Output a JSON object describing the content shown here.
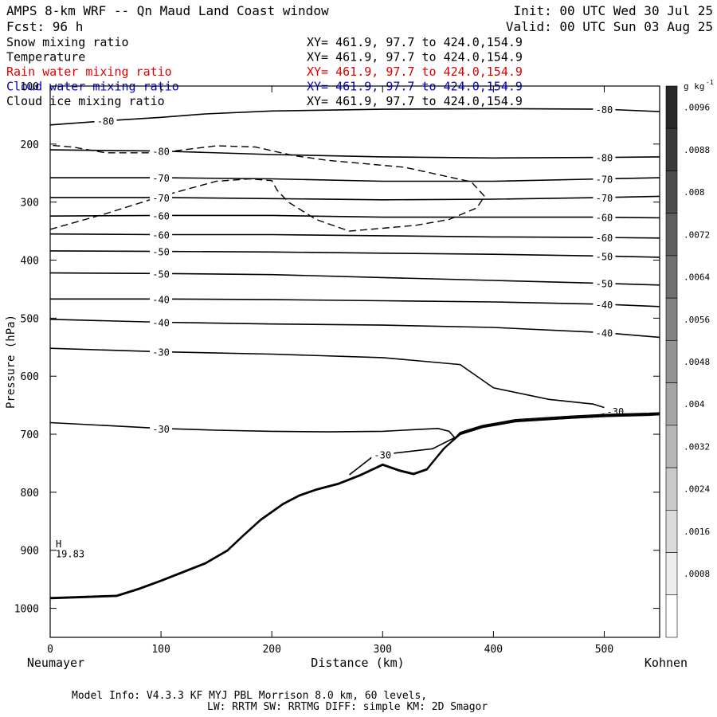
{
  "header": {
    "title": "AMPS 8-km WRF -- Qn Maud Land Coast window",
    "init": "Init: 00 UTC Wed 30 Jul 25",
    "fcst": "Fcst:   96 h",
    "valid": "Valid: 00 UTC Sun 03 Aug 25"
  },
  "fields": [
    {
      "name": "Snow mixing ratio",
      "xy": "XY= 461.9, 97.7 to 424.0,154.9",
      "color": "#000000"
    },
    {
      "name": "Temperature",
      "xy": "XY= 461.9, 97.7 to 424.0,154.9",
      "color": "#000000"
    },
    {
      "name": "Rain water mixing ratio",
      "xy": "XY= 461.9, 97.7 to 424.0,154.9",
      "color": "#e00000"
    },
    {
      "name": "Cloud water mixing ratio",
      "xy": "XY= 461.9, 97.7 to 424.0,154.9",
      "color": "#0000cc"
    },
    {
      "name": "Cloud ice mixing ratio",
      "xy": "XY= 461.9, 97.7 to 424.0,154.9",
      "color": "#000000"
    }
  ],
  "footer": {
    "line1": "Model Info: V4.3.3   KF      MYJ PBL  Morrison           8.0 km,  60 levels,",
    "line2": "LW: RRTM SW: RRTMG   DIFF: simple KM: 2D Smagor"
  },
  "chart_data": {
    "type": "contour",
    "xlabel": "Distance (km)",
    "ylabel": "Pressure (hPa)",
    "x_start_label": "Neumayer",
    "x_end_label": "Kohnen",
    "xlim": [
      0,
      550
    ],
    "ylim": [
      1050,
      100
    ],
    "x_ticks": [
      0,
      100,
      200,
      300,
      400,
      500
    ],
    "y_ticks": [
      100,
      200,
      300,
      400,
      500,
      600,
      700,
      800,
      900,
      1000
    ],
    "colorbar": {
      "unit": "g kg",
      "unit_exp": "-1",
      "ticks": [
        ".0096",
        ".0088",
        ".008",
        ".0072",
        ".0064",
        ".0056",
        ".0048",
        ".004",
        ".0032",
        ".0024",
        ".0016",
        ".0008"
      ]
    },
    "isotherms": [
      {
        "value": -80,
        "points": [
          [
            0,
            167
          ],
          [
            50,
            160
          ],
          [
            100,
            154
          ],
          [
            140,
            148
          ],
          [
            200,
            143
          ],
          [
            300,
            140
          ],
          [
            400,
            139
          ],
          [
            500,
            140
          ],
          [
            550,
            144
          ]
        ]
      },
      {
        "value": -80,
        "points": [
          [
            0,
            210
          ],
          [
            100,
            212
          ],
          [
            200,
            218
          ],
          [
            300,
            222
          ],
          [
            400,
            224
          ],
          [
            500,
            223
          ],
          [
            550,
            222
          ]
        ]
      },
      {
        "value": -70,
        "points": [
          [
            0,
            258
          ],
          [
            100,
            258
          ],
          [
            200,
            260
          ],
          [
            300,
            264
          ],
          [
            400,
            264
          ],
          [
            500,
            260
          ],
          [
            550,
            258
          ]
        ]
      },
      {
        "value": -70,
        "points": [
          [
            0,
            292
          ],
          [
            100,
            292
          ],
          [
            200,
            294
          ],
          [
            300,
            296
          ],
          [
            400,
            295
          ],
          [
            500,
            292
          ],
          [
            550,
            290
          ]
        ]
      },
      {
        "value": -60,
        "points": [
          [
            0,
            324
          ],
          [
            100,
            323
          ],
          [
            200,
            323
          ],
          [
            300,
            326
          ],
          [
            400,
            326
          ],
          [
            500,
            326
          ],
          [
            550,
            327
          ]
        ]
      },
      {
        "value": -60,
        "points": [
          [
            0,
            355
          ],
          [
            100,
            356
          ],
          [
            200,
            356
          ],
          [
            300,
            358
          ],
          [
            400,
            360
          ],
          [
            500,
            361
          ],
          [
            550,
            362
          ]
        ]
      },
      {
        "value": -50,
        "points": [
          [
            0,
            384
          ],
          [
            100,
            385
          ],
          [
            200,
            386
          ],
          [
            300,
            388
          ],
          [
            400,
            390
          ],
          [
            500,
            393
          ],
          [
            550,
            395
          ]
        ]
      },
      {
        "value": -50,
        "points": [
          [
            0,
            422
          ],
          [
            100,
            423
          ],
          [
            200,
            425
          ],
          [
            300,
            430
          ],
          [
            400,
            435
          ],
          [
            500,
            440
          ],
          [
            550,
            443
          ]
        ]
      },
      {
        "value": -40,
        "points": [
          [
            0,
            467
          ],
          [
            100,
            467
          ],
          [
            200,
            468
          ],
          [
            300,
            470
          ],
          [
            400,
            472
          ],
          [
            500,
            476
          ],
          [
            550,
            480
          ]
        ]
      },
      {
        "value": -40,
        "points": [
          [
            0,
            502
          ],
          [
            100,
            507
          ],
          [
            200,
            510
          ],
          [
            300,
            512
          ],
          [
            400,
            516
          ],
          [
            500,
            525
          ],
          [
            550,
            533
          ]
        ]
      },
      {
        "value": -30,
        "points": [
          [
            0,
            552
          ],
          [
            100,
            558
          ],
          [
            200,
            562
          ],
          [
            300,
            568
          ],
          [
            370,
            580
          ],
          [
            400,
            620
          ],
          [
            450,
            640
          ],
          [
            490,
            648
          ],
          [
            510,
            660
          ],
          [
            490,
            670
          ],
          [
            470,
            672
          ]
        ]
      },
      {
        "value": -30,
        "points": [
          [
            0,
            680
          ],
          [
            50,
            685
          ],
          [
            100,
            690
          ],
          [
            150,
            693
          ],
          [
            200,
            695
          ],
          [
            250,
            696
          ],
          [
            300,
            695
          ],
          [
            330,
            692
          ],
          [
            350,
            690
          ],
          [
            360,
            695
          ],
          [
            365,
            706
          ],
          [
            345,
            725
          ],
          [
            300,
            735
          ],
          [
            290,
            740
          ],
          [
            280,
            755
          ],
          [
            270,
            770
          ]
        ]
      }
    ],
    "snow_contour": {
      "level": ".0008",
      "points": [
        [
          0,
          347
        ],
        [
          50,
          320
        ],
        [
          100,
          290
        ],
        [
          150,
          264
        ],
        [
          180,
          260
        ],
        [
          200,
          263
        ],
        [
          205,
          280
        ],
        [
          215,
          300
        ],
        [
          240,
          330
        ],
        [
          270,
          350
        ],
        [
          300,
          345
        ],
        [
          330,
          340
        ],
        [
          360,
          330
        ],
        [
          385,
          310
        ],
        [
          392,
          290
        ],
        [
          380,
          265
        ],
        [
          320,
          240
        ],
        [
          250,
          228
        ],
        [
          220,
          220
        ],
        [
          185,
          205
        ],
        [
          150,
          203
        ],
        [
          120,
          210
        ],
        [
          100,
          215
        ],
        [
          50,
          215
        ],
        [
          20,
          205
        ],
        [
          0,
          202
        ]
      ]
    },
    "terrain_elevation_label": "H",
    "terrain_max": "19.83",
    "terrain": [
      [
        0,
        982
      ],
      [
        30,
        980
      ],
      [
        60,
        978
      ],
      [
        80,
        966
      ],
      [
        100,
        952
      ],
      [
        120,
        937
      ],
      [
        140,
        922
      ],
      [
        160,
        900
      ],
      [
        175,
        873
      ],
      [
        190,
        847
      ],
      [
        210,
        820
      ],
      [
        225,
        805
      ],
      [
        240,
        795
      ],
      [
        260,
        785
      ],
      [
        280,
        770
      ],
      [
        300,
        752
      ],
      [
        315,
        762
      ],
      [
        328,
        768
      ],
      [
        340,
        760
      ],
      [
        355,
        725
      ],
      [
        370,
        700
      ],
      [
        390,
        688
      ],
      [
        420,
        678
      ],
      [
        470,
        672
      ],
      [
        500,
        669
      ],
      [
        540,
        667
      ],
      [
        550,
        666
      ]
    ]
  }
}
